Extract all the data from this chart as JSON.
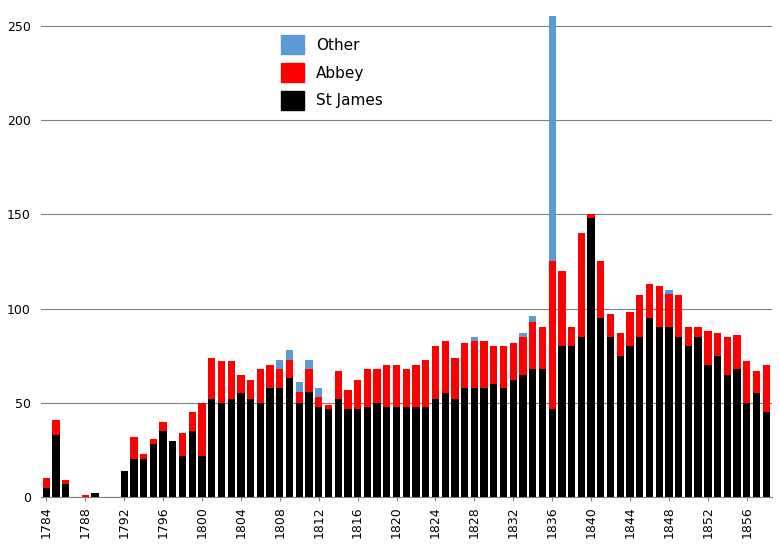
{
  "years": [
    1784,
    1785,
    1786,
    1787,
    1788,
    1789,
    1790,
    1791,
    1792,
    1793,
    1794,
    1795,
    1796,
    1797,
    1798,
    1799,
    1800,
    1801,
    1802,
    1803,
    1804,
    1805,
    1806,
    1807,
    1808,
    1809,
    1810,
    1811,
    1812,
    1813,
    1814,
    1815,
    1816,
    1817,
    1818,
    1819,
    1820,
    1821,
    1822,
    1823,
    1824,
    1825,
    1826,
    1827,
    1828,
    1829,
    1830,
    1831,
    1832,
    1833,
    1834,
    1835,
    1836,
    1837,
    1838,
    1839,
    1840,
    1841,
    1842,
    1843,
    1844,
    1845,
    1846,
    1847,
    1848,
    1849,
    1850,
    1851,
    1852,
    1853,
    1854,
    1855,
    1856,
    1857,
    1858
  ],
  "st_james": [
    5,
    33,
    7,
    0,
    0,
    2,
    0,
    0,
    14,
    20,
    20,
    28,
    35,
    30,
    22,
    35,
    22,
    52,
    50,
    52,
    55,
    52,
    50,
    58,
    58,
    63,
    50,
    56,
    48,
    47,
    52,
    47,
    47,
    48,
    50,
    48,
    48,
    48,
    48,
    48,
    52,
    55,
    52,
    58,
    58,
    58,
    60,
    58,
    62,
    65,
    68,
    68,
    47,
    80,
    80,
    85,
    148,
    95,
    85,
    75,
    80,
    85,
    95,
    90,
    90,
    85,
    80,
    85,
    70,
    75,
    65,
    68,
    50,
    55,
    45
  ],
  "abbey": [
    5,
    8,
    2,
    0,
    1,
    0,
    0,
    0,
    0,
    12,
    3,
    3,
    5,
    0,
    12,
    10,
    28,
    22,
    22,
    20,
    10,
    10,
    18,
    12,
    10,
    10,
    6,
    12,
    5,
    2,
    15,
    10,
    15,
    20,
    18,
    22,
    22,
    20,
    22,
    25,
    28,
    28,
    22,
    24,
    25,
    25,
    20,
    22,
    20,
    20,
    25,
    22,
    78,
    40,
    10,
    55,
    2,
    30,
    12,
    12,
    18,
    22,
    18,
    22,
    18,
    22,
    10,
    5,
    18,
    12,
    20,
    18,
    22,
    12,
    25
  ],
  "other": [
    0,
    0,
    0,
    0,
    0,
    0,
    0,
    0,
    0,
    0,
    0,
    0,
    0,
    0,
    0,
    0,
    0,
    0,
    0,
    0,
    0,
    0,
    0,
    0,
    5,
    5,
    5,
    5,
    5,
    0,
    0,
    0,
    0,
    0,
    0,
    0,
    0,
    0,
    0,
    0,
    0,
    0,
    0,
    0,
    2,
    0,
    0,
    0,
    0,
    2,
    3,
    0,
    130,
    0,
    0,
    0,
    0,
    0,
    0,
    0,
    0,
    0,
    0,
    0,
    2,
    0,
    0,
    0,
    0,
    0,
    0,
    0,
    0,
    0,
    0
  ],
  "st_james_color": "#000000",
  "abbey_color": "#ff0000",
  "other_color": "#5b9bd5",
  "ylim": [
    0,
    260
  ],
  "yticks": [
    0,
    50,
    100,
    150,
    200,
    250
  ],
  "grid_color": "#808080",
  "bar_width": 0.75
}
